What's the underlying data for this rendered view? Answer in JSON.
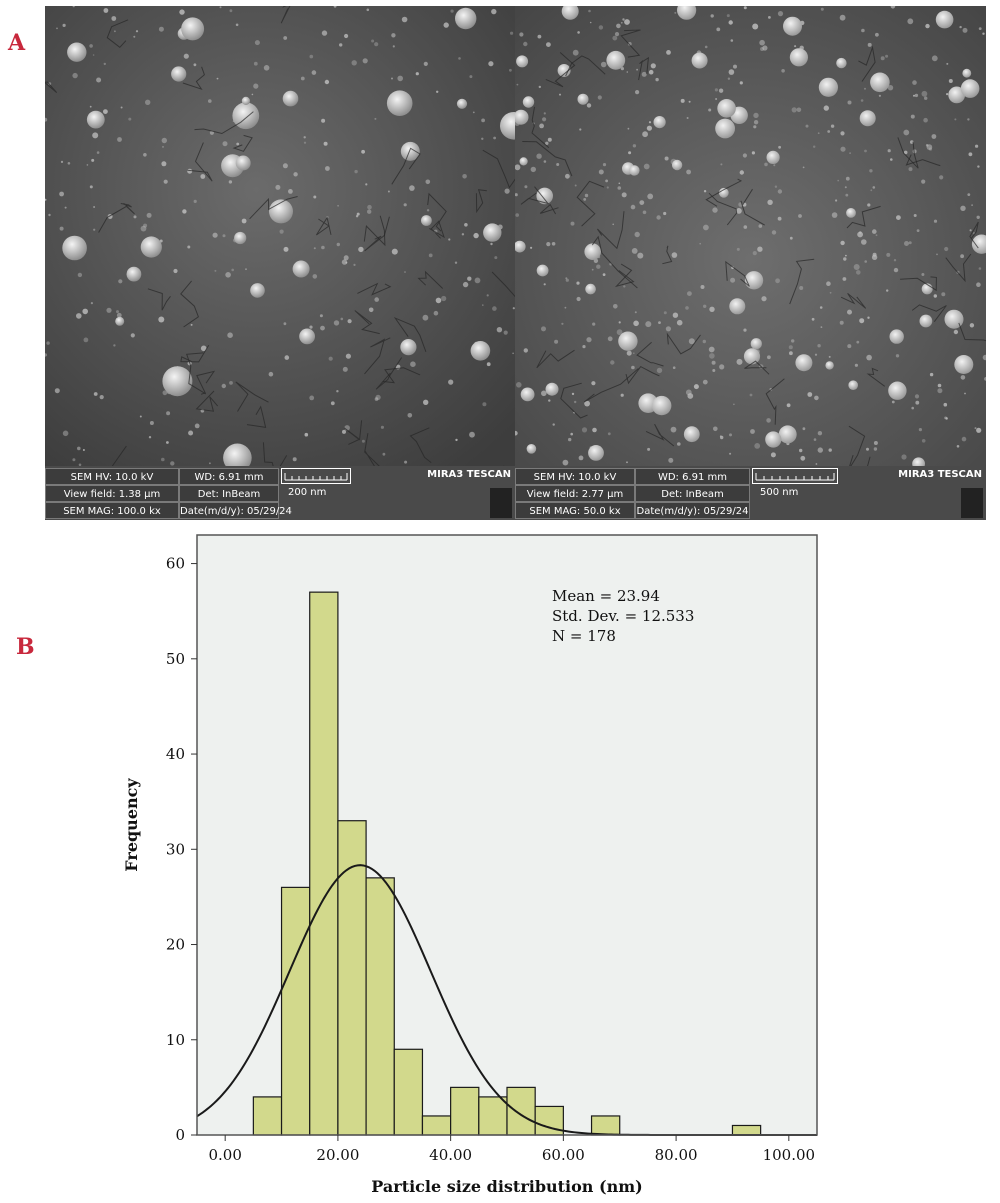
{
  "panels": {
    "a": "A",
    "b": "B"
  },
  "sem_left": {
    "hv": "SEM HV: 10.0 kV",
    "wd": "WD: 6.91 mm",
    "view_field": "View field: 1.38 µm",
    "det": "Det: InBeam",
    "scale": "200 nm",
    "mag": "SEM MAG: 100.0 kx",
    "date": "Date(m/d/y): 05/29/24",
    "brand": "MIRA3 TESCAN"
  },
  "sem_right": {
    "hv": "SEM HV: 10.0 kV",
    "wd": "WD: 6.91 mm",
    "view_field": "View field: 2.77 µm",
    "det": "Det: InBeam",
    "scale": "500 nm",
    "mag": "SEM MAG: 50.0 kx",
    "date": "Date(m/d/y): 05/29/24",
    "brand": "MIRA3 TESCAN"
  },
  "chart_data": {
    "type": "bar",
    "subtype": "histogram",
    "xlabel": "Particle size distribution (nm)",
    "ylabel": "Frequency",
    "xlim": [
      -5,
      105
    ],
    "ylim": [
      0,
      63
    ],
    "xticks": [
      0,
      20,
      40,
      60,
      80,
      100
    ],
    "xtick_labels": [
      "0.00",
      "20.00",
      "40.00",
      "60.00",
      "80.00",
      "100.00"
    ],
    "yticks": [
      0,
      10,
      20,
      30,
      40,
      50,
      60
    ],
    "bin_width": 5,
    "bins": [
      {
        "start": 5,
        "end": 10,
        "count": 4
      },
      {
        "start": 10,
        "end": 15,
        "count": 26
      },
      {
        "start": 15,
        "end": 20,
        "count": 57
      },
      {
        "start": 20,
        "end": 25,
        "count": 33
      },
      {
        "start": 25,
        "end": 30,
        "count": 27
      },
      {
        "start": 30,
        "end": 35,
        "count": 9
      },
      {
        "start": 35,
        "end": 40,
        "count": 2
      },
      {
        "start": 40,
        "end": 45,
        "count": 5
      },
      {
        "start": 45,
        "end": 50,
        "count": 4
      },
      {
        "start": 50,
        "end": 55,
        "count": 5
      },
      {
        "start": 55,
        "end": 60,
        "count": 3
      },
      {
        "start": 65,
        "end": 70,
        "count": 2
      },
      {
        "start": 90,
        "end": 95,
        "count": 1
      }
    ],
    "normal_curve": {
      "mean": 23.94,
      "std": 12.533,
      "n": 178
    },
    "stats": [
      "Mean = 23.94",
      "Std. Dev. = 12.533",
      "N = 178"
    ],
    "colors": {
      "bar_fill": "#d2d98c",
      "bar_stroke": "#1a1a1a",
      "plot_bg": "#eef1ef",
      "curve": "#1a1a1a"
    },
    "grid": false
  }
}
